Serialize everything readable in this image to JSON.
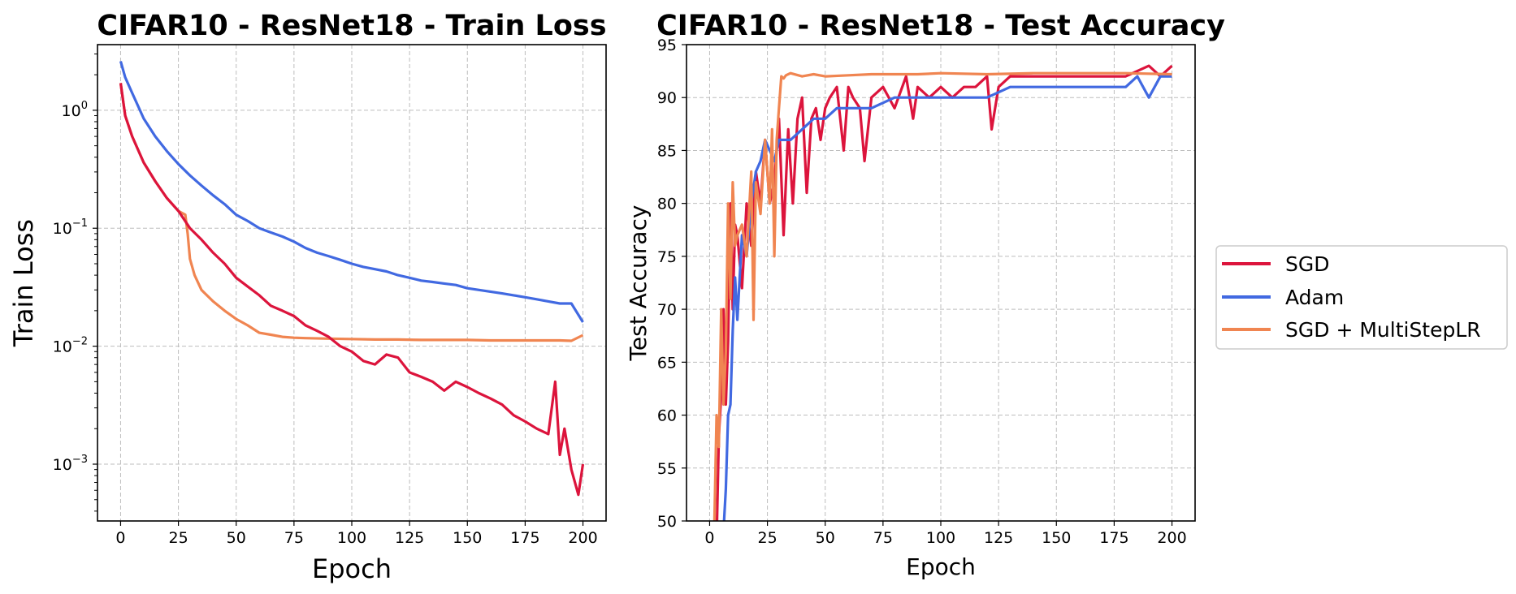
{
  "colors": {
    "SGD": "#dc143c",
    "Adam": "#4169e1",
    "SGD + MultiStepLR": "#f08551",
    "grid": "#bdbdbd"
  },
  "legend": {
    "placement": "center-right",
    "entries": [
      "SGD",
      "Adam",
      "SGD + MultiStepLR"
    ]
  },
  "chart_data": [
    {
      "type": "line",
      "title": "CIFAR10 - ResNet18 - Train Loss",
      "xlabel": "Epoch",
      "ylabel": "Train Loss",
      "yscale": "log",
      "xlim": [
        -10,
        210
      ],
      "ylim": [
        0.00033,
        3.6
      ],
      "xticks": [
        0,
        25,
        50,
        75,
        100,
        125,
        150,
        175,
        200
      ],
      "yticks": [
        0.001,
        0.01,
        0.1,
        1
      ],
      "ytick_labels": [
        [
          "10",
          "−3"
        ],
        [
          "10",
          "−2"
        ],
        [
          "10",
          "−1"
        ],
        [
          "10",
          "0"
        ]
      ],
      "grid": true,
      "series": [
        {
          "name": "Adam",
          "x": [
            0,
            2,
            5,
            10,
            15,
            20,
            25,
            30,
            35,
            40,
            45,
            50,
            55,
            60,
            65,
            70,
            75,
            80,
            85,
            90,
            95,
            100,
            105,
            110,
            115,
            120,
            125,
            130,
            135,
            140,
            145,
            150,
            155,
            160,
            165,
            170,
            175,
            180,
            185,
            190,
            195,
            200
          ],
          "y": [
            2.6,
            1.9,
            1.4,
            0.85,
            0.6,
            0.45,
            0.35,
            0.28,
            0.23,
            0.19,
            0.16,
            0.13,
            0.115,
            0.1,
            0.092,
            0.085,
            0.077,
            0.068,
            0.062,
            0.058,
            0.054,
            0.05,
            0.047,
            0.045,
            0.043,
            0.04,
            0.038,
            0.036,
            0.035,
            0.034,
            0.033,
            0.031,
            0.03,
            0.029,
            0.028,
            0.027,
            0.026,
            0.025,
            0.024,
            0.023,
            0.023,
            0.016
          ]
        },
        {
          "name": "SGD + MultiStepLR",
          "x": [
            0,
            2,
            5,
            10,
            15,
            20,
            25,
            28,
            29,
            30,
            32,
            35,
            40,
            45,
            50,
            55,
            60,
            65,
            70,
            75,
            80,
            90,
            100,
            110,
            120,
            130,
            140,
            150,
            160,
            170,
            180,
            190,
            195,
            200
          ],
          "y": [
            1.7,
            0.9,
            0.6,
            0.36,
            0.25,
            0.18,
            0.14,
            0.13,
            0.09,
            0.055,
            0.04,
            0.03,
            0.024,
            0.02,
            0.017,
            0.015,
            0.013,
            0.0125,
            0.012,
            0.0118,
            0.0117,
            0.0116,
            0.0115,
            0.0114,
            0.0114,
            0.0113,
            0.0113,
            0.0113,
            0.0112,
            0.0112,
            0.0112,
            0.0112,
            0.0111,
            0.0124
          ]
        },
        {
          "name": "SGD",
          "x": [
            0,
            2,
            5,
            10,
            15,
            20,
            25,
            30,
            35,
            40,
            45,
            50,
            55,
            60,
            65,
            70,
            75,
            80,
            85,
            90,
            95,
            100,
            105,
            110,
            115,
            120,
            125,
            130,
            135,
            140,
            145,
            150,
            155,
            160,
            165,
            170,
            175,
            180,
            185,
            188,
            190,
            192,
            195,
            198,
            200
          ],
          "y": [
            1.7,
            0.9,
            0.6,
            0.36,
            0.25,
            0.18,
            0.14,
            0.1,
            0.08,
            0.062,
            0.05,
            0.038,
            0.032,
            0.027,
            0.022,
            0.02,
            0.018,
            0.015,
            0.0135,
            0.012,
            0.01,
            0.009,
            0.0075,
            0.007,
            0.0085,
            0.008,
            0.006,
            0.0055,
            0.005,
            0.0042,
            0.005,
            0.0045,
            0.004,
            0.0036,
            0.0032,
            0.0026,
            0.0023,
            0.002,
            0.0018,
            0.005,
            0.0012,
            0.002,
            0.0009,
            0.00055,
            0.001
          ]
        }
      ]
    },
    {
      "type": "line",
      "title": "CIFAR10 - ResNet18 - Test Accuracy",
      "xlabel": "Epoch",
      "ylabel": "Test Accuracy",
      "yscale": "linear",
      "xlim": [
        -10,
        210
      ],
      "ylim": [
        50,
        95
      ],
      "xticks": [
        0,
        25,
        50,
        75,
        100,
        125,
        150,
        175,
        200
      ],
      "yticks": [
        50,
        55,
        60,
        65,
        70,
        75,
        80,
        85,
        90,
        95
      ],
      "grid": true,
      "series": [
        {
          "name": "SGD",
          "x": [
            3,
            4,
            5,
            6,
            7,
            8,
            9,
            10,
            11,
            12,
            14,
            16,
            18,
            20,
            22,
            24,
            26,
            28,
            30,
            32,
            34,
            36,
            38,
            40,
            42,
            44,
            46,
            48,
            50,
            52,
            55,
            58,
            60,
            62,
            65,
            67,
            70,
            75,
            80,
            85,
            88,
            90,
            95,
            100,
            105,
            110,
            115,
            120,
            122,
            125,
            130,
            140,
            150,
            160,
            170,
            180,
            190,
            195,
            200
          ],
          "y": [
            48,
            58,
            62,
            70,
            61,
            67,
            80,
            70,
            78,
            77,
            72,
            80,
            76,
            83,
            80,
            86,
            80,
            82,
            88,
            77,
            87,
            80,
            88,
            90,
            81,
            88,
            89,
            86,
            89,
            90,
            91,
            85,
            91,
            90,
            89,
            84,
            90,
            91,
            89,
            92,
            88,
            91,
            90,
            91,
            90,
            91,
            91,
            92,
            87,
            91,
            92,
            92,
            92,
            92,
            92,
            92,
            93,
            92,
            93
          ]
        },
        {
          "name": "Adam",
          "x": [
            6,
            7,
            8,
            9,
            10,
            11,
            12,
            14,
            16,
            18,
            20,
            22,
            24,
            26,
            28,
            30,
            35,
            40,
            45,
            50,
            55,
            60,
            70,
            80,
            90,
            100,
            110,
            120,
            130,
            140,
            150,
            160,
            170,
            180,
            185,
            190,
            195,
            200
          ],
          "y": [
            49,
            53,
            60,
            61,
            68,
            73,
            69,
            77,
            75,
            80,
            83,
            84,
            86,
            85,
            84,
            86,
            86,
            87,
            88,
            88,
            89,
            89,
            89,
            90,
            90,
            90,
            90,
            90,
            91,
            91,
            91,
            91,
            91,
            91,
            92,
            90,
            92,
            92
          ]
        },
        {
          "name": "SGD + MultiStepLR",
          "x": [
            2,
            3,
            4,
            5,
            6,
            7,
            8,
            9,
            10,
            11,
            12,
            14,
            16,
            18,
            19,
            20,
            22,
            24,
            26,
            27,
            28,
            29,
            30,
            31,
            32,
            33,
            35,
            40,
            45,
            50,
            60,
            70,
            80,
            90,
            100,
            120,
            140,
            160,
            180,
            200
          ],
          "y": [
            49,
            60,
            57,
            70,
            61,
            66,
            80,
            71,
            82,
            76,
            77,
            78,
            75,
            83,
            69,
            82,
            79,
            86,
            80,
            87,
            75,
            86,
            89,
            92,
            91.8,
            92.1,
            92.3,
            92.0,
            92.2,
            92.0,
            92.1,
            92.2,
            92.2,
            92.2,
            92.3,
            92.2,
            92.3,
            92.3,
            92.3,
            92.2
          ]
        }
      ]
    }
  ]
}
